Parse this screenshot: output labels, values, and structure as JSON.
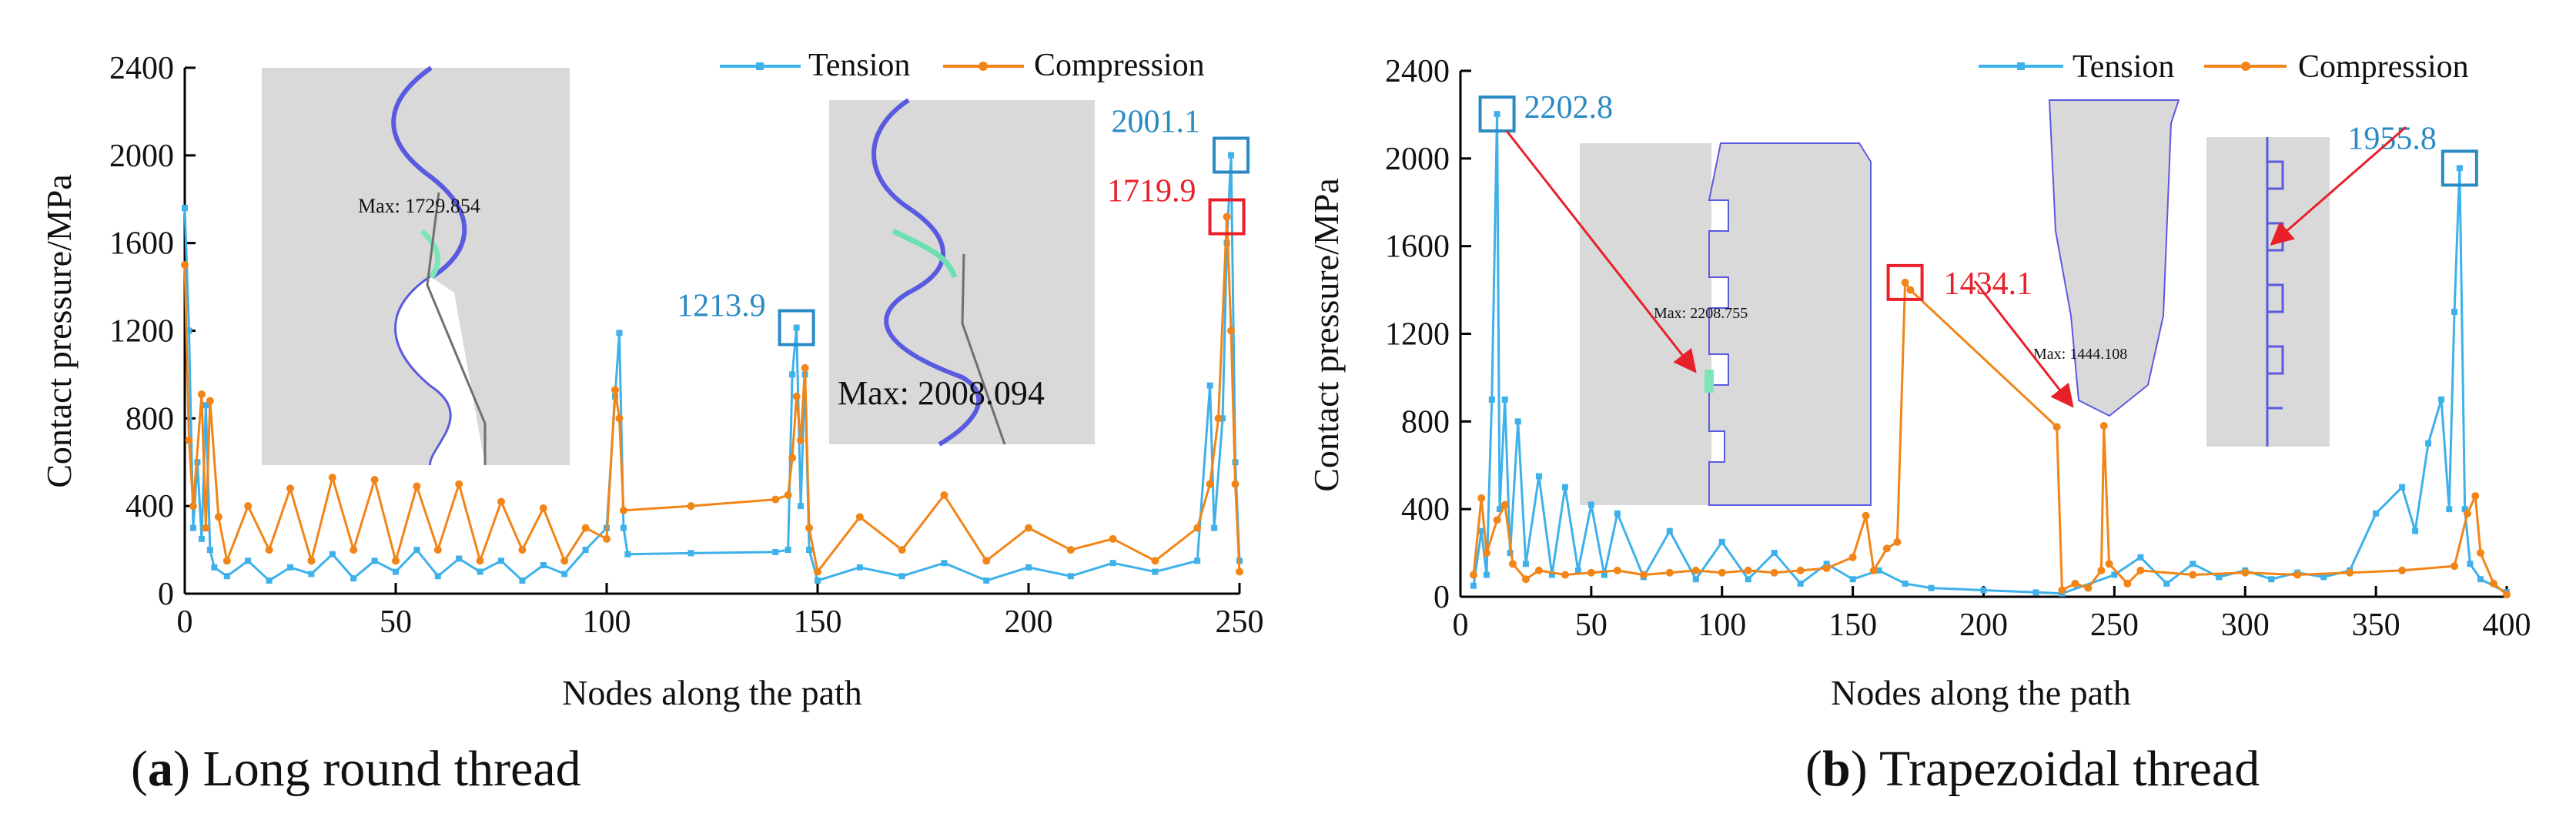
{
  "colors": {
    "tension": "#3EB1EA",
    "compression": "#F28518",
    "callout_blue": "#2A8AC4",
    "callout_red": "#E8202A",
    "inset_fill": "#D9D9D9",
    "thread_line": "#5A5AE0"
  },
  "chart_data": [
    {
      "type": "line",
      "caption_letter": "a",
      "caption_text": ") Long round thread",
      "caption_prefix": "(",
      "xlabel": "Nodes along the path",
      "ylabel": "Contact pressure/MPa",
      "xlim": [
        0,
        250
      ],
      "ylim": [
        0,
        2400
      ],
      "xticks": [
        0,
        50,
        100,
        150,
        200,
        250
      ],
      "yticks": [
        0,
        400,
        800,
        1200,
        1600,
        2000,
        2400
      ],
      "legend": [
        "Tension",
        "Compression"
      ],
      "series": [
        {
          "name": "Tension",
          "points": [
            [
              0,
              1760
            ],
            [
              1,
              1200
            ],
            [
              2,
              300
            ],
            [
              3,
              600
            ],
            [
              4,
              250
            ],
            [
              5,
              860
            ],
            [
              6,
              200
            ],
            [
              7,
              120
            ],
            [
              10,
              80
            ],
            [
              15,
              150
            ],
            [
              20,
              60
            ],
            [
              25,
              120
            ],
            [
              30,
              90
            ],
            [
              35,
              180
            ],
            [
              40,
              70
            ],
            [
              45,
              150
            ],
            [
              50,
              100
            ],
            [
              55,
              200
            ],
            [
              60,
              80
            ],
            [
              65,
              160
            ],
            [
              70,
              100
            ],
            [
              75,
              150
            ],
            [
              80,
              60
            ],
            [
              85,
              130
            ],
            [
              90,
              90
            ],
            [
              95,
              200
            ],
            [
              100,
              300
            ],
            [
              102,
              900
            ],
            [
              103,
              1190
            ],
            [
              104,
              300
            ],
            [
              105,
              180
            ],
            [
              120,
              185
            ],
            [
              140,
              190
            ],
            [
              143,
              200
            ],
            [
              144,
              1000
            ],
            [
              145,
              1213.9
            ],
            [
              146,
              400
            ],
            [
              147,
              1000
            ],
            [
              148,
              200
            ],
            [
              150,
              60
            ],
            [
              160,
              120
            ],
            [
              170,
              80
            ],
            [
              180,
              140
            ],
            [
              190,
              60
            ],
            [
              200,
              120
            ],
            [
              210,
              80
            ],
            [
              220,
              140
            ],
            [
              230,
              100
            ],
            [
              240,
              150
            ],
            [
              243,
              950
            ],
            [
              244,
              300
            ],
            [
              246,
              800
            ],
            [
              247,
              1600
            ],
            [
              248,
              2001.1
            ],
            [
              249,
              600
            ],
            [
              250,
              150
            ]
          ]
        },
        {
          "name": "Compression",
          "points": [
            [
              0,
              1500
            ],
            [
              1,
              700
            ],
            [
              2,
              400
            ],
            [
              4,
              910
            ],
            [
              5,
              300
            ],
            [
              6,
              880
            ],
            [
              8,
              350
            ],
            [
              10,
              150
            ],
            [
              15,
              400
            ],
            [
              20,
              200
            ],
            [
              25,
              480
            ],
            [
              30,
              150
            ],
            [
              35,
              530
            ],
            [
              40,
              200
            ],
            [
              45,
              520
            ],
            [
              50,
              150
            ],
            [
              55,
              490
            ],
            [
              60,
              200
            ],
            [
              65,
              500
            ],
            [
              70,
              150
            ],
            [
              75,
              420
            ],
            [
              80,
              200
            ],
            [
              85,
              390
            ],
            [
              90,
              150
            ],
            [
              95,
              300
            ],
            [
              100,
              250
            ],
            [
              102,
              930
            ],
            [
              103,
              800
            ],
            [
              104,
              380
            ],
            [
              120,
              400
            ],
            [
              140,
              430
            ],
            [
              143,
              450
            ],
            [
              144,
              620
            ],
            [
              145,
              900
            ],
            [
              146,
              700
            ],
            [
              147,
              1030
            ],
            [
              148,
              300
            ],
            [
              150,
              100
            ],
            [
              160,
              350
            ],
            [
              170,
              200
            ],
            [
              180,
              450
            ],
            [
              190,
              150
            ],
            [
              200,
              300
            ],
            [
              210,
              200
            ],
            [
              220,
              250
            ],
            [
              230,
              150
            ],
            [
              240,
              300
            ],
            [
              243,
              500
            ],
            [
              245,
              800
            ],
            [
              247,
              1719.9
            ],
            [
              248,
              1200
            ],
            [
              249,
              500
            ],
            [
              250,
              100
            ]
          ]
        }
      ],
      "annotations": [
        {
          "label": "1213.9",
          "x": 145,
          "y": 1213.9,
          "color": "blue"
        },
        {
          "label": "2001.1",
          "x": 248,
          "y": 2001.1,
          "color": "blue"
        },
        {
          "label": "1719.9",
          "x": 247,
          "y": 1719.9,
          "color": "red"
        }
      ],
      "insets": [
        {
          "text": "Max: 1729.854"
        },
        {
          "text": "Max: 2008.094"
        }
      ]
    },
    {
      "type": "line",
      "caption_letter": "b",
      "caption_text": ") Trapezoidal thread",
      "caption_prefix": "(",
      "xlabel": "Nodes along the path",
      "ylabel": "Contact pressure/MPa",
      "xlim": [
        0,
        400
      ],
      "ylim": [
        0,
        2400
      ],
      "xticks": [
        0,
        50,
        100,
        150,
        200,
        250,
        300,
        350,
        400
      ],
      "yticks": [
        0,
        400,
        800,
        1200,
        1600,
        2000,
        2400
      ],
      "legend": [
        "Tension",
        "Compression"
      ],
      "series": [
        {
          "name": "Tension",
          "points": [
            [
              5,
              50
            ],
            [
              8,
              300
            ],
            [
              10,
              100
            ],
            [
              12,
              900
            ],
            [
              14,
              2202.8
            ],
            [
              15,
              400
            ],
            [
              17,
              900
            ],
            [
              19,
              200
            ],
            [
              22,
              800
            ],
            [
              25,
              150
            ],
            [
              30,
              550
            ],
            [
              35,
              100
            ],
            [
              40,
              500
            ],
            [
              45,
              120
            ],
            [
              50,
              420
            ],
            [
              55,
              100
            ],
            [
              60,
              380
            ],
            [
              70,
              90
            ],
            [
              80,
              300
            ],
            [
              90,
              80
            ],
            [
              100,
              250
            ],
            [
              110,
              80
            ],
            [
              120,
              200
            ],
            [
              130,
              60
            ],
            [
              140,
              150
            ],
            [
              150,
              80
            ],
            [
              160,
              120
            ],
            [
              170,
              60
            ],
            [
              180,
              40
            ],
            [
              200,
              30
            ],
            [
              220,
              20
            ],
            [
              230,
              15
            ],
            [
              250,
              100
            ],
            [
              260,
              180
            ],
            [
              270,
              60
            ],
            [
              280,
              150
            ],
            [
              290,
              90
            ],
            [
              300,
              120
            ],
            [
              310,
              80
            ],
            [
              320,
              110
            ],
            [
              330,
              90
            ],
            [
              340,
              120
            ],
            [
              350,
              380
            ],
            [
              360,
              500
            ],
            [
              365,
              300
            ],
            [
              370,
              700
            ],
            [
              375,
              900
            ],
            [
              378,
              400
            ],
            [
              380,
              1300
            ],
            [
              382,
              1955.8
            ],
            [
              384,
              400
            ],
            [
              386,
              150
            ],
            [
              390,
              80
            ],
            [
              400,
              20
            ]
          ]
        },
        {
          "name": "Compression",
          "points": [
            [
              5,
              100
            ],
            [
              8,
              450
            ],
            [
              10,
              200
            ],
            [
              14,
              350
            ],
            [
              17,
              420
            ],
            [
              20,
              150
            ],
            [
              25,
              80
            ],
            [
              30,
              120
            ],
            [
              40,
              100
            ],
            [
              50,
              110
            ],
            [
              60,
              120
            ],
            [
              70,
              100
            ],
            [
              80,
              110
            ],
            [
              90,
              120
            ],
            [
              100,
              110
            ],
            [
              110,
              120
            ],
            [
              120,
              110
            ],
            [
              130,
              120
            ],
            [
              140,
              130
            ],
            [
              150,
              180
            ],
            [
              155,
              370
            ],
            [
              158,
              120
            ],
            [
              163,
              220
            ],
            [
              167,
              250
            ],
            [
              170,
              1434.1
            ],
            [
              172,
              1400
            ],
            [
              228,
              775
            ],
            [
              230,
              30
            ],
            [
              235,
              60
            ],
            [
              240,
              40
            ],
            [
              245,
              120
            ],
            [
              246,
              780
            ],
            [
              248,
              150
            ],
            [
              255,
              60
            ],
            [
              260,
              120
            ],
            [
              280,
              100
            ],
            [
              300,
              110
            ],
            [
              320,
              100
            ],
            [
              340,
              110
            ],
            [
              360,
              120
            ],
            [
              380,
              140
            ],
            [
              385,
              380
            ],
            [
              388,
              460
            ],
            [
              390,
              200
            ],
            [
              395,
              60
            ],
            [
              400,
              10
            ]
          ]
        }
      ],
      "annotations": [
        {
          "label": "2202.8",
          "x": 14,
          "y": 2202.8,
          "color": "blue"
        },
        {
          "label": "1434.1",
          "x": 170,
          "y": 1434.1,
          "color": "red"
        },
        {
          "label": "1955.8",
          "x": 382,
          "y": 1955.8,
          "color": "blue"
        }
      ],
      "insets": [
        {
          "text": "Max: 2208.755"
        },
        {
          "text": "Max: 1444.108"
        }
      ]
    }
  ]
}
